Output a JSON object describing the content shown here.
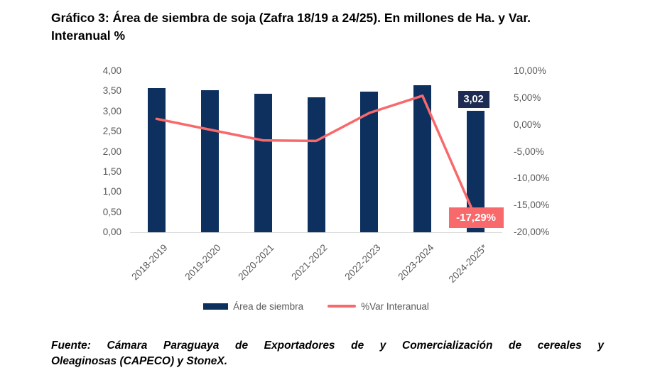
{
  "title_lines": [
    "Gráfico 3: Área de siembra de soja (Zafra 18/19 a 24/25). En millones de Ha. y Var.",
    "Interanual %"
  ],
  "source_lines": [
    "Fuente: Cámara Paraguaya de Exportadores de y Comercialización de cereales y",
    "Oleaginosas (CAPECO) y StoneX."
  ],
  "colors": {
    "bar": "#0d305f",
    "line": "#f8696b",
    "axis_text": "#595959",
    "baseline": "#d9d9d9",
    "bar_label_bg": "#1e2b52",
    "line_label_bg": "#f8696b"
  },
  "chart_data": {
    "type": "bar",
    "title": "Área de siembra de soja (Zafra 18/19 a 24/25)",
    "categories": [
      "2018-2019",
      "2019-2020",
      "2020-2021",
      "2021-2022",
      "2022-2023",
      "2023-2024",
      "2024-2025*"
    ],
    "series": [
      {
        "name": "Área de siembra",
        "kind": "bar",
        "axis": "left",
        "color": "#0d305f",
        "values": [
          3.57,
          3.53,
          3.44,
          3.34,
          3.49,
          3.65,
          3.02
        ]
      },
      {
        "name": "%Var Interanual",
        "kind": "line",
        "axis": "right",
        "color": "#f8696b",
        "values": [
          1.1,
          -0.9,
          -2.9,
          -3.0,
          2.2,
          5.4,
          -17.29
        ]
      }
    ],
    "left_axis": {
      "min": 0,
      "max": 4,
      "tick_values": [
        4,
        3.5,
        3,
        2.5,
        2,
        1.5,
        1,
        0.5,
        0
      ],
      "tick_labels": [
        "4,00",
        "3,50",
        "3,00",
        "2,50",
        "2,00",
        "1,50",
        "1,00",
        "0,50",
        "0,00"
      ]
    },
    "right_axis": {
      "min": -20,
      "max": 10,
      "tick_values": [
        10,
        5,
        0,
        -5,
        -10,
        -15,
        -20
      ],
      "tick_labels": [
        "10,00%",
        "5,00%",
        "0,00%",
        "-5,00%",
        "-10,00%",
        "-15,00%",
        "-20,00%"
      ]
    },
    "data_labels": [
      {
        "series": 0,
        "index": 6,
        "text": "3,02",
        "bg": "#1e2b52",
        "fg": "#ffffff"
      },
      {
        "series": 1,
        "index": 6,
        "text": "-17,29%",
        "bg": "#f8696b",
        "fg": "#ffffff"
      }
    ],
    "legend": [
      {
        "label": "Área de siembra",
        "swatch": "bar",
        "color": "#0d305f"
      },
      {
        "label": "%Var Interanual",
        "swatch": "line",
        "color": "#f8696b"
      }
    ],
    "grid": false,
    "legend_position": "bottom"
  }
}
